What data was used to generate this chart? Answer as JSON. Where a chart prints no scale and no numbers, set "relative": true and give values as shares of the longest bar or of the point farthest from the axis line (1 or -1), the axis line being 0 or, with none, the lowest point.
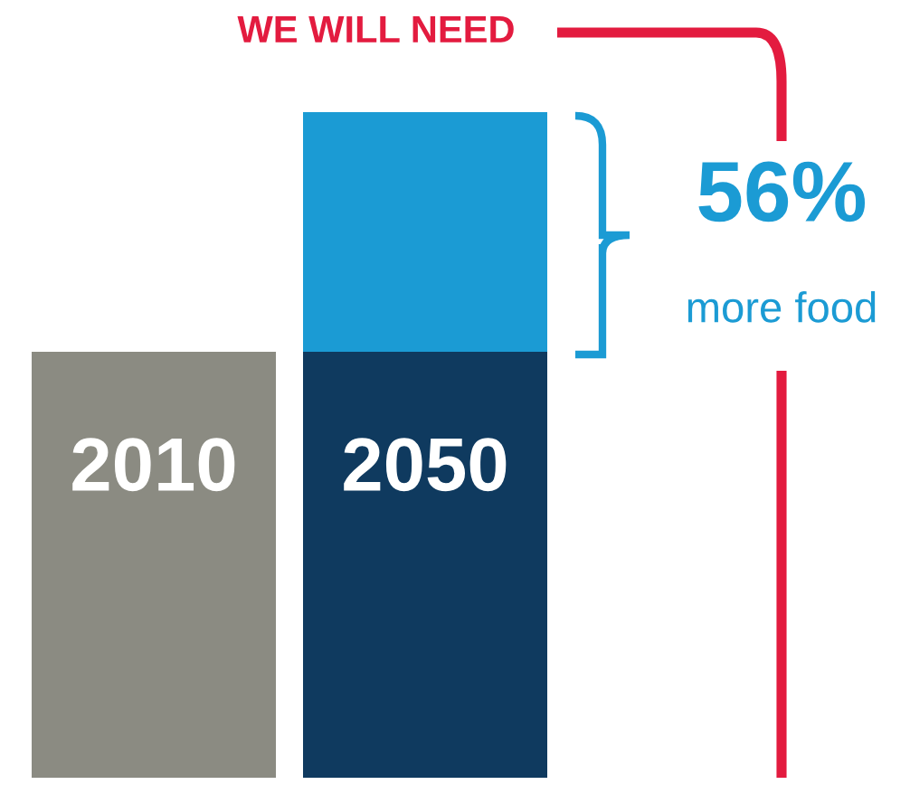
{
  "chart_data": {
    "type": "bar",
    "stacked": true,
    "relative": true,
    "categories": [
      "2010",
      "2050"
    ],
    "series": [
      {
        "colors": [
          "#8b8b82",
          "#0f3a5f"
        ],
        "values": [
          0.64,
          0.64
        ]
      },
      {
        "color": "#1b9bd4",
        "values": [
          null,
          0.36
        ]
      }
    ],
    "annotations": [
      "WE WILL NEED",
      "56%",
      "more food"
    ]
  }
}
